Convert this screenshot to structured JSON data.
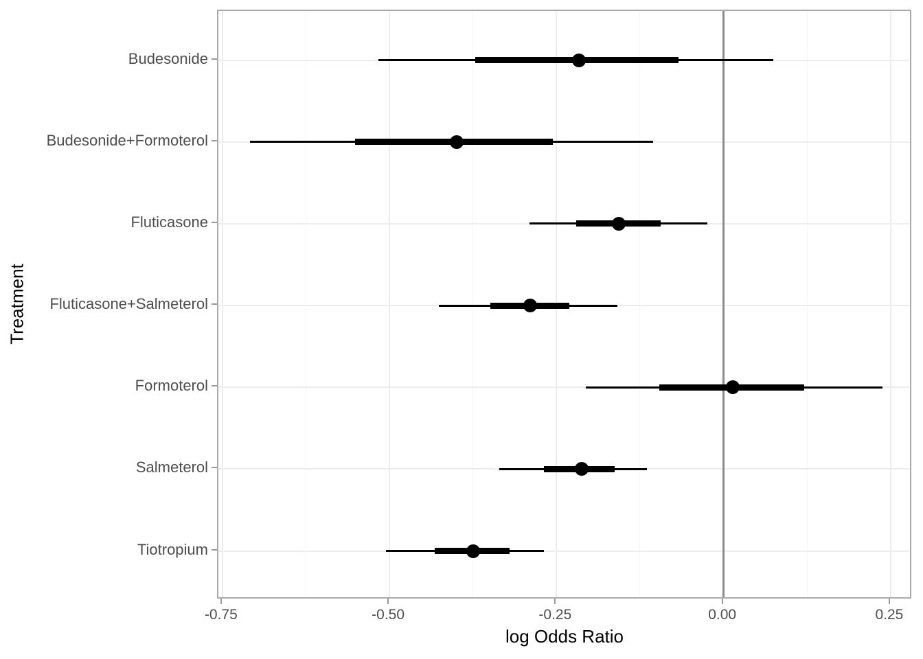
{
  "chart_data": {
    "type": "scatter",
    "subtype": "forest_interval_plot",
    "orientation": "horizontal",
    "title": "",
    "xlabel": "log Odds Ratio",
    "ylabel": "Treatment",
    "xlim": [
      -0.756,
      0.283
    ],
    "x_major_ticks": [
      -0.75,
      -0.5,
      -0.25,
      0,
      0.25
    ],
    "x_tick_labels": [
      "-0.75",
      "-0.50",
      "-0.25",
      "0.00",
      "0.25"
    ],
    "x_minor_gridlines": [
      -0.625,
      -0.375,
      -0.125,
      0.125
    ],
    "reference_line_x": 0,
    "grid": true,
    "legend": false,
    "categories": [
      "Budesonide",
      "Budesonide+Formoterol",
      "Fluticasone",
      "Fluticasone+Salmeterol",
      "Formoterol",
      "Salmeterol",
      "Tiotropium"
    ],
    "series": [
      {
        "name": "Budesonide",
        "estimate": -0.216,
        "inner_interval": [
          -0.372,
          -0.067
        ],
        "outer_interval": [
          -0.517,
          0.074
        ]
      },
      {
        "name": "Budesonide+Formoterol",
        "estimate": -0.399,
        "inner_interval": [
          -0.551,
          -0.256
        ],
        "outer_interval": [
          -0.709,
          -0.105
        ]
      },
      {
        "name": "Fluticasone",
        "estimate": -0.157,
        "inner_interval": [
          -0.221,
          -0.094
        ],
        "outer_interval": [
          -0.29,
          -0.024
        ]
      },
      {
        "name": "Fluticasone+Salmeterol",
        "estimate": -0.289,
        "inner_interval": [
          -0.349,
          -0.231
        ],
        "outer_interval": [
          -0.426,
          -0.159
        ]
      },
      {
        "name": "Formoterol",
        "estimate": 0.014,
        "inner_interval": [
          -0.096,
          0.121
        ],
        "outer_interval": [
          -0.206,
          0.238
        ]
      },
      {
        "name": "Salmeterol",
        "estimate": -0.212,
        "inner_interval": [
          -0.269,
          -0.163
        ],
        "outer_interval": [
          -0.336,
          -0.115
        ]
      },
      {
        "name": "Tiotropium",
        "estimate": -0.375,
        "inner_interval": [
          -0.432,
          -0.32
        ],
        "outer_interval": [
          -0.505,
          -0.269
        ]
      }
    ],
    "colors": {
      "interval": "#000000",
      "point": "#000000",
      "reference_line": "#8c8c8c",
      "panel_border": "#ababab",
      "grid_major": "#ededed",
      "grid_minor": "#f6f6f6",
      "tick_mark": "#999999",
      "tick_label": "#4d4d4d",
      "axis_title": "#000000",
      "background": "#ffffff"
    }
  }
}
